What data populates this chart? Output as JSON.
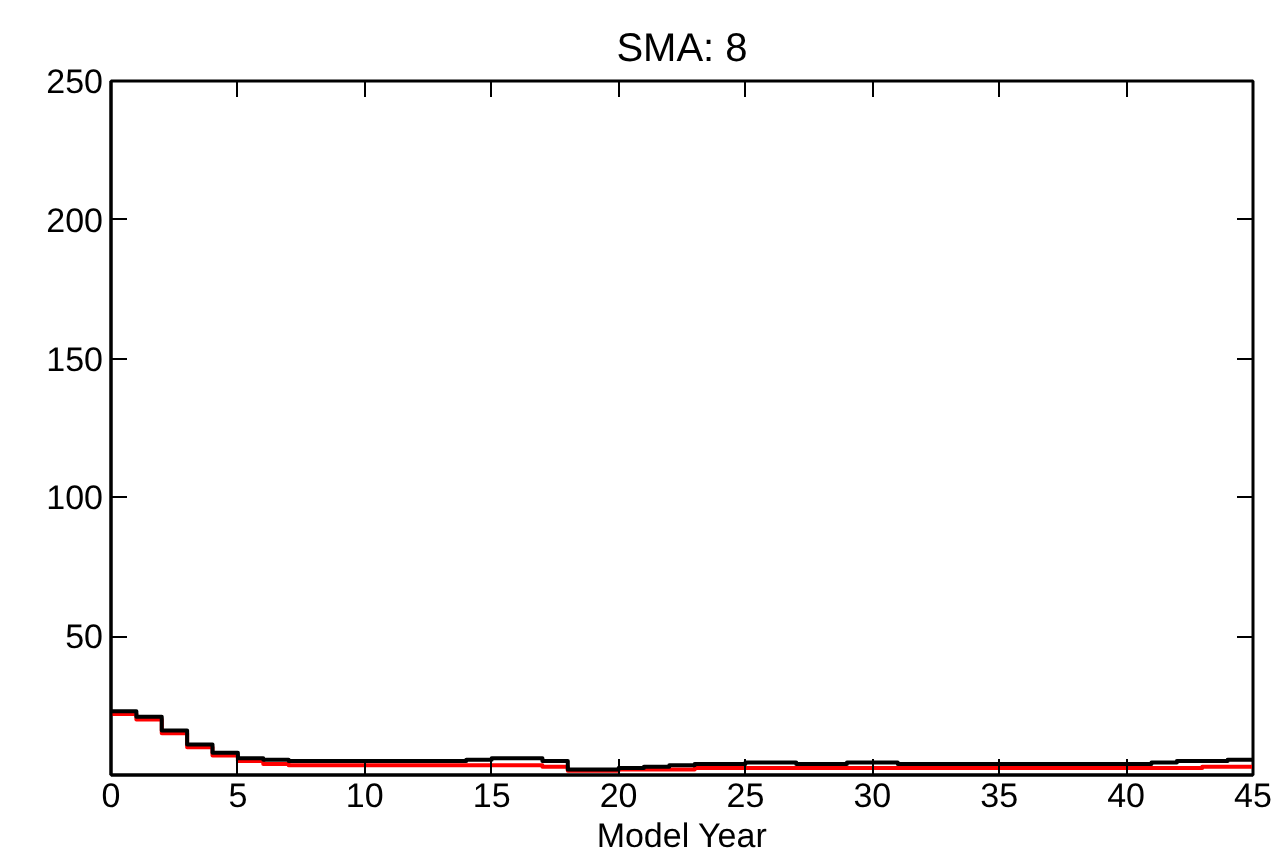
{
  "chart_data": {
    "type": "step",
    "title": "SMA: 8",
    "xlabel": "Model Year",
    "x": [
      0,
      1,
      2,
      3,
      4,
      5,
      6,
      7,
      8,
      9,
      10,
      11,
      12,
      13,
      14,
      15,
      16,
      17,
      18,
      19,
      20,
      21,
      22,
      23,
      24,
      25,
      26,
      27,
      28,
      29,
      30,
      31,
      32,
      33,
      34,
      35,
      36,
      37,
      38,
      39,
      40,
      41,
      42,
      43,
      44,
      45
    ],
    "series": [
      {
        "color": "#ff0000",
        "values": [
          22,
          20,
          15,
          10,
          7,
          5,
          4,
          3.5,
          3.5,
          3.5,
          3.5,
          3.5,
          3.5,
          3.5,
          3.5,
          3.5,
          3.5,
          3,
          1.5,
          1.5,
          2,
          2,
          2,
          2.5,
          2.5,
          2.5,
          2.5,
          2.5,
          2.5,
          2.5,
          2.5,
          2.5,
          2.5,
          2.5,
          2.5,
          2.5,
          2.5,
          2.5,
          2.5,
          2.5,
          2.5,
          2.5,
          2.5,
          3,
          3,
          3
        ]
      },
      {
        "color": "#000000",
        "values": [
          23,
          21,
          16,
          11,
          8,
          6,
          5.5,
          5,
          5,
          5,
          5,
          5,
          5,
          5,
          5.5,
          6,
          6,
          5,
          2,
          2,
          2.5,
          3,
          3.5,
          4,
          4,
          4.5,
          4.5,
          4,
          4,
          4.5,
          4.5,
          4,
          4,
          4,
          4,
          4,
          4,
          4,
          4,
          4,
          4,
          4.5,
          5,
          5,
          5.5,
          6
        ]
      }
    ],
    "xlim": [
      0,
      45
    ],
    "ylim": [
      0,
      250
    ],
    "xticks": [
      0,
      5,
      10,
      15,
      20,
      25,
      30,
      35,
      40,
      45
    ],
    "yticks": [
      {
        "value": 0,
        "label": null
      },
      50,
      100,
      150,
      200,
      250
    ],
    "grid": false
  }
}
